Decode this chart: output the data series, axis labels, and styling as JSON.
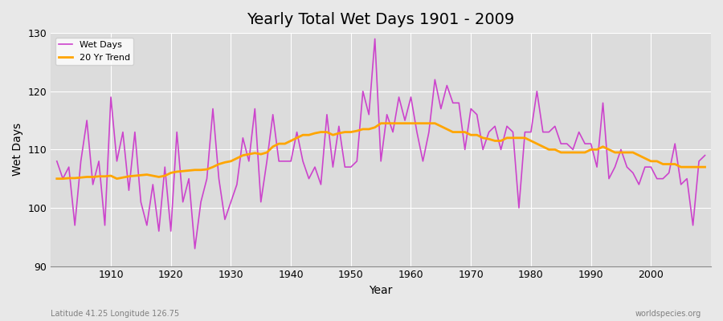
{
  "title": "Yearly Total Wet Days 1901 - 2009",
  "xlabel": "Year",
  "ylabel": "Wet Days",
  "footnote_left": "Latitude 41.25 Longitude 126.75",
  "footnote_right": "worldspecies.org",
  "legend_wet": "Wet Days",
  "legend_trend": "20 Yr Trend",
  "wet_color": "#CC44CC",
  "trend_color": "#FFA500",
  "bg_color": "#E8E8E8",
  "plot_bg_color": "#DCDCDC",
  "ylim": [
    90,
    130
  ],
  "yticks": [
    90,
    100,
    110,
    120,
    130
  ],
  "years": [
    1901,
    1902,
    1903,
    1904,
    1905,
    1906,
    1907,
    1908,
    1909,
    1910,
    1911,
    1912,
    1913,
    1914,
    1915,
    1916,
    1917,
    1918,
    1919,
    1920,
    1921,
    1922,
    1923,
    1924,
    1925,
    1926,
    1927,
    1928,
    1929,
    1930,
    1931,
    1932,
    1933,
    1934,
    1935,
    1936,
    1937,
    1938,
    1939,
    1940,
    1941,
    1942,
    1943,
    1944,
    1945,
    1946,
    1947,
    1948,
    1949,
    1950,
    1951,
    1952,
    1953,
    1954,
    1955,
    1956,
    1957,
    1958,
    1959,
    1960,
    1961,
    1962,
    1963,
    1964,
    1965,
    1966,
    1967,
    1968,
    1969,
    1970,
    1971,
    1972,
    1973,
    1974,
    1975,
    1976,
    1977,
    1978,
    1979,
    1980,
    1981,
    1982,
    1983,
    1984,
    1985,
    1986,
    1987,
    1988,
    1989,
    1990,
    1991,
    1992,
    1993,
    1994,
    1995,
    1996,
    1997,
    1998,
    1999,
    2000,
    2001,
    2002,
    2003,
    2004,
    2005,
    2006,
    2007,
    2008,
    2009
  ],
  "wet_days": [
    108,
    105,
    107,
    97,
    108,
    115,
    104,
    108,
    97,
    119,
    108,
    113,
    103,
    113,
    101,
    97,
    104,
    96,
    107,
    96,
    113,
    101,
    105,
    93,
    101,
    105,
    117,
    105,
    98,
    101,
    104,
    112,
    108,
    117,
    101,
    108,
    116,
    108,
    108,
    108,
    113,
    108,
    105,
    107,
    104,
    116,
    107,
    114,
    107,
    107,
    108,
    120,
    116,
    129,
    108,
    116,
    113,
    119,
    115,
    119,
    113,
    108,
    113,
    122,
    117,
    121,
    118,
    118,
    110,
    117,
    116,
    110,
    113,
    114,
    110,
    114,
    113,
    100,
    113,
    113,
    120,
    113,
    113,
    114,
    111,
    111,
    110,
    113,
    111,
    111,
    107,
    118,
    105,
    107,
    110,
    107,
    106,
    104,
    107,
    107,
    105,
    105,
    106,
    111,
    104,
    105,
    97,
    108,
    109
  ],
  "trend_years": [
    1901,
    1902,
    1903,
    1904,
    1905,
    1906,
    1907,
    1908,
    1909,
    1910,
    1911,
    1912,
    1913,
    1914,
    1915,
    1916,
    1917,
    1918,
    1919,
    1920,
    1921,
    1922,
    1923,
    1924,
    1925,
    1926,
    1927,
    1928,
    1929,
    1930,
    1931,
    1932,
    1933,
    1934,
    1935,
    1936,
    1937,
    1938,
    1939,
    1940,
    1941,
    1942,
    1943,
    1944,
    1945,
    1946,
    1947,
    1948,
    1949,
    1950,
    1951,
    1952,
    1953,
    1954,
    1955,
    1956,
    1957,
    1958,
    1959,
    1960,
    1961,
    1962,
    1963,
    1964,
    1965,
    1966,
    1967,
    1968,
    1969,
    1970,
    1971,
    1972,
    1973,
    1974,
    1975,
    1976,
    1977,
    1978,
    1979,
    1980,
    1981,
    1982,
    1983,
    1984,
    1985,
    1986,
    1987,
    1988,
    1989,
    1990,
    1991,
    1992,
    1993,
    1994,
    1995,
    1996,
    1997,
    1998,
    1999,
    2000,
    2001,
    2002,
    2003,
    2004,
    2005,
    2006,
    2007,
    2008,
    2009
  ],
  "trend_values": [
    105.0,
    105.0,
    105.1,
    105.1,
    105.2,
    105.3,
    105.3,
    105.4,
    105.4,
    105.5,
    105.0,
    105.2,
    105.4,
    105.5,
    105.6,
    105.7,
    105.5,
    105.3,
    105.5,
    106.0,
    106.2,
    106.3,
    106.4,
    106.5,
    106.5,
    106.6,
    107.0,
    107.5,
    107.8,
    108.0,
    108.5,
    109.0,
    109.2,
    109.4,
    109.2,
    109.5,
    110.5,
    111.0,
    111.0,
    111.5,
    112.0,
    112.5,
    112.5,
    112.8,
    113.0,
    113.0,
    112.5,
    112.8,
    113.0,
    113.0,
    113.2,
    113.5,
    113.5,
    113.8,
    114.5,
    114.5,
    114.5,
    114.5,
    114.5,
    114.5,
    114.5,
    114.5,
    114.5,
    114.5,
    114.0,
    113.5,
    113.0,
    113.0,
    113.0,
    112.5,
    112.5,
    112.0,
    111.8,
    111.5,
    111.5,
    112.0,
    112.0,
    112.0,
    112.0,
    111.5,
    111.0,
    110.5,
    110.0,
    110.0,
    109.5,
    109.5,
    109.5,
    109.5,
    109.5,
    110.0,
    110.0,
    110.5,
    110.0,
    109.5,
    109.5,
    109.5,
    109.5,
    109.0,
    108.5,
    108.0,
    108.0,
    107.5,
    107.5,
    107.5,
    107.0,
    107.0,
    107.0,
    107.0,
    107.0
  ],
  "xticks": [
    1910,
    1920,
    1930,
    1940,
    1950,
    1960,
    1970,
    1980,
    1990,
    2000
  ]
}
